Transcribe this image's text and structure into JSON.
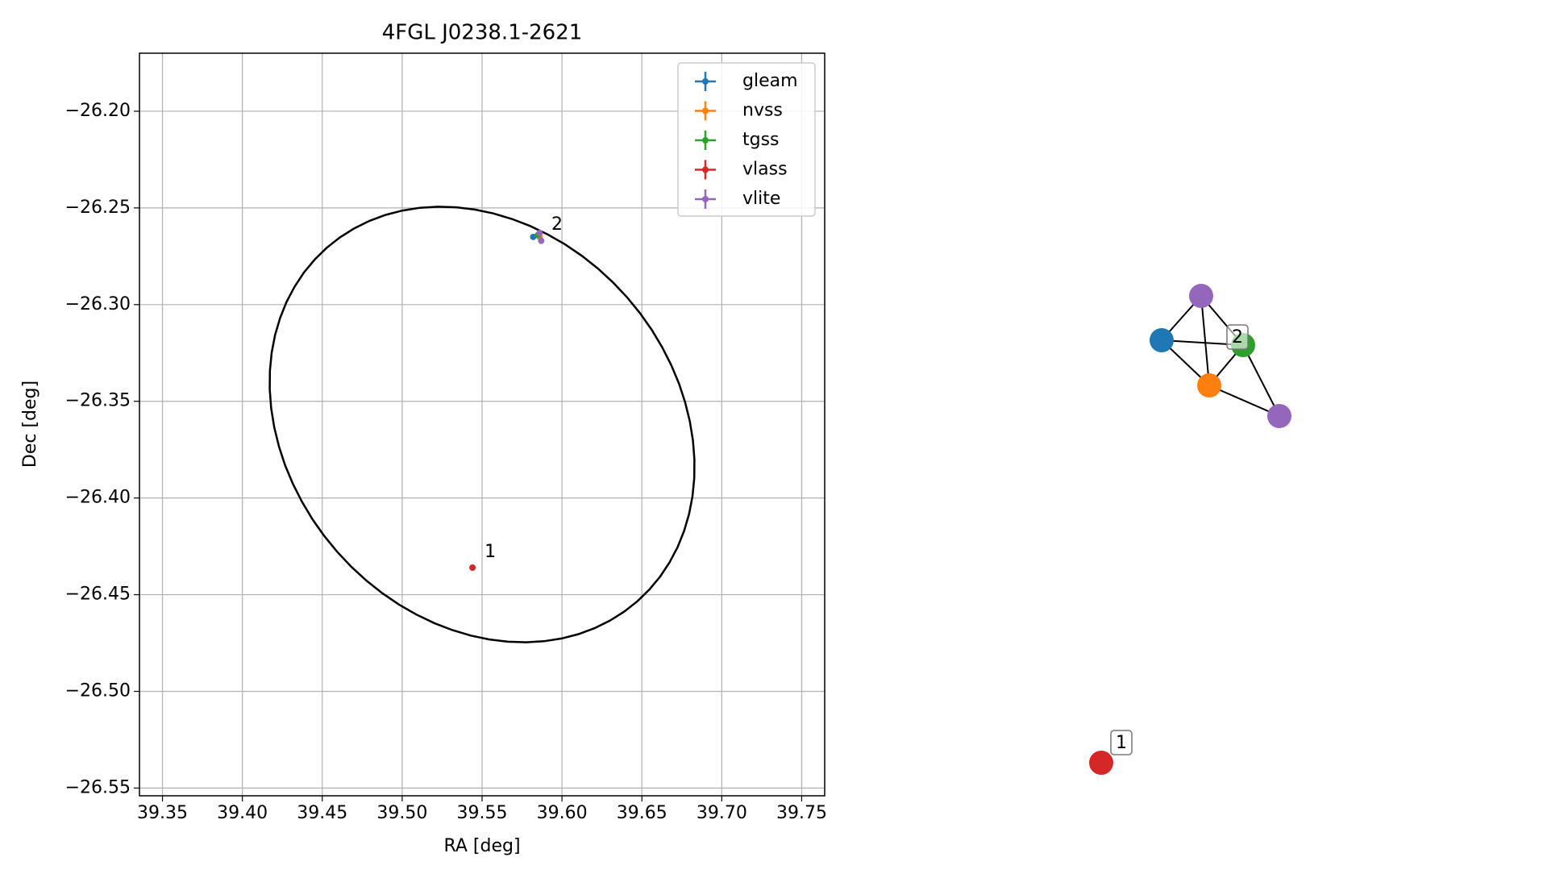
{
  "chart_data": {
    "type": "scatter",
    "title": "4FGL J0238.1-2621",
    "x_label": "RA [deg]",
    "y_label": "Dec [deg]",
    "xlim": [
      39.3356,
      39.7644
    ],
    "ylim": [
      -26.554,
      -26.17
    ],
    "xticks": [
      39.35,
      {
        "value": 39.4,
        "label": "39.40"
      },
      39.45,
      {
        "value": 39.5,
        "label": "39.50"
      },
      39.55,
      {
        "value": 39.6,
        "label": "39.60"
      },
      39.65,
      {
        "value": 39.7,
        "label": "39.70"
      },
      39.75
    ],
    "yticks": [
      {
        "value": -26.2,
        "label": "−26.20"
      },
      {
        "value": -26.25,
        "label": "−26.25"
      },
      {
        "value": -26.3,
        "label": "−26.30"
      },
      {
        "value": -26.35,
        "label": "−26.35"
      },
      {
        "value": -26.4,
        "label": "−26.40"
      },
      {
        "value": -26.45,
        "label": "−26.45"
      },
      {
        "value": -26.5,
        "label": "−26.50"
      },
      {
        "value": -26.55,
        "label": "−26.55"
      }
    ],
    "grid": true,
    "legend": "upper right",
    "series": [
      {
        "name": "gleam",
        "color": "#1f77b4",
        "x": [
          39.582
        ],
        "values": [
          -26.265
        ]
      },
      {
        "name": "nvss",
        "color": "#ff7f0e",
        "x": [
          39.586
        ],
        "values": [
          -26.265
        ]
      },
      {
        "name": "tgss",
        "color": "#2ca02c",
        "x": [
          39.585
        ],
        "values": [
          -26.264
        ]
      },
      {
        "name": "vlass",
        "color": "#d62728",
        "x": [
          39.544
        ],
        "values": [
          -26.436
        ]
      },
      {
        "name": "vlite",
        "color": "#9467bd",
        "x": [
          39.586,
          39.587
        ],
        "values": [
          -26.263,
          -26.267
        ]
      }
    ],
    "ellipse": {
      "center": [
        39.55,
        -26.362
      ],
      "axis1": [
        0.0972,
        -0.0914
      ],
      "axis2": [
        -0.0907,
        -0.0658
      ]
    },
    "annotations": [
      {
        "text": "1",
        "x": 39.5516,
        "y": -26.428
      },
      {
        "text": "2",
        "x": 39.5934,
        "y": -26.2588
      }
    ]
  },
  "graph": {
    "labels": [
      "1",
      "2"
    ]
  }
}
